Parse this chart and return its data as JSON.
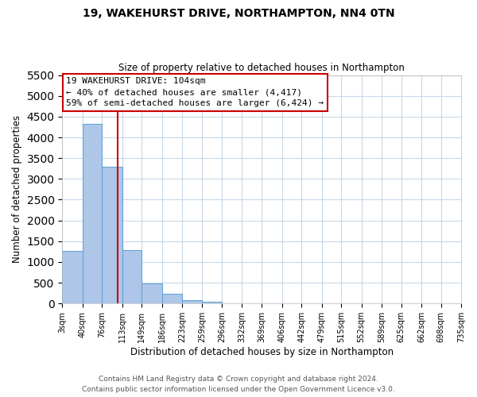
{
  "title": "19, WAKEHURST DRIVE, NORTHAMPTON, NN4 0TN",
  "subtitle": "Size of property relative to detached houses in Northampton",
  "xlabel": "Distribution of detached houses by size in Northampton",
  "ylabel": "Number of detached properties",
  "bar_edges": [
    3,
    40,
    76,
    113,
    149,
    186,
    223,
    259,
    296,
    332,
    369,
    406,
    442,
    479,
    515,
    552,
    589,
    625,
    662,
    698,
    735
  ],
  "bar_heights": [
    1270,
    4330,
    3290,
    1280,
    480,
    230,
    80,
    40,
    0,
    0,
    0,
    0,
    0,
    0,
    0,
    0,
    0,
    0,
    0,
    0
  ],
  "bar_color": "#aec6e8",
  "bar_edgecolor": "#5a9fd4",
  "vline_x": 104,
  "vline_color": "#cc0000",
  "ylim": [
    0,
    5500
  ],
  "yticks": [
    0,
    500,
    1000,
    1500,
    2000,
    2500,
    3000,
    3500,
    4000,
    4500,
    5000,
    5500
  ],
  "xtick_labels": [
    "3sqm",
    "40sqm",
    "76sqm",
    "113sqm",
    "149sqm",
    "186sqm",
    "223sqm",
    "259sqm",
    "296sqm",
    "332sqm",
    "369sqm",
    "406sqm",
    "442sqm",
    "479sqm",
    "515sqm",
    "552sqm",
    "589sqm",
    "625sqm",
    "662sqm",
    "698sqm",
    "735sqm"
  ],
  "annotation_title": "19 WAKEHURST DRIVE: 104sqm",
  "annotation_line1": "← 40% of detached houses are smaller (4,417)",
  "annotation_line2": "59% of semi-detached houses are larger (6,424) →",
  "annotation_box_color": "#ffffff",
  "annotation_box_edgecolor": "#cc0000",
  "footnote1": "Contains HM Land Registry data © Crown copyright and database right 2024.",
  "footnote2": "Contains public sector information licensed under the Open Government Licence v3.0.",
  "background_color": "#ffffff",
  "grid_color": "#c8d8e8"
}
